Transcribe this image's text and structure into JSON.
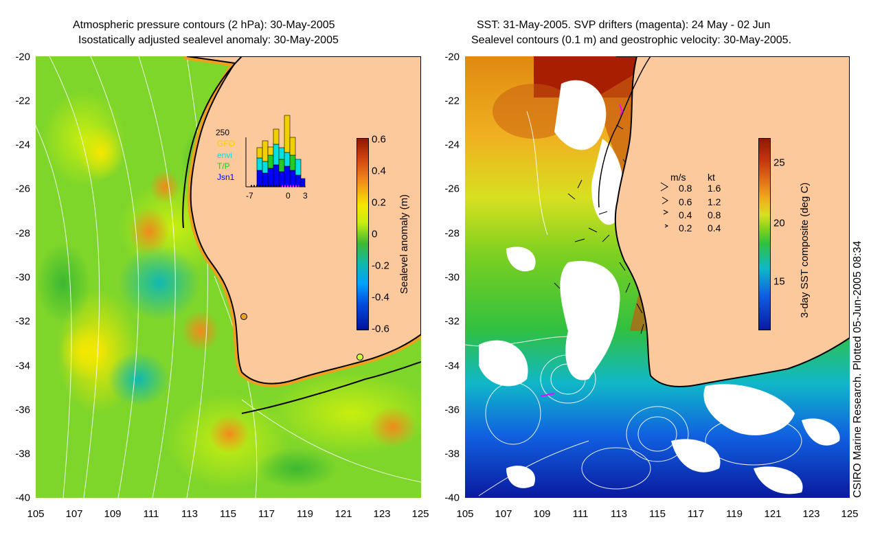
{
  "left_panel": {
    "title_line1": "Atmospheric pressure contours (2 hPa): 30-May-2005",
    "title_line2": "Isostatically adjusted sealevel anomaly: 30-May-2005",
    "colorbar": {
      "label": "Sealevel anomaly (m)",
      "ticks": [
        "0.6",
        "0.4",
        "0.2",
        "0",
        "-0.2",
        "-0.4",
        "-0.6"
      ]
    },
    "inset": {
      "ymax_label": "250",
      "x_labels": [
        "-7",
        "0",
        "3"
      ],
      "legend": [
        {
          "name": "GFO",
          "color": "#f2d000"
        },
        {
          "name": "envi",
          "color": "#00e0e0"
        },
        {
          "name": "T/P",
          "color": "#22cc22"
        },
        {
          "name": "Jsn1",
          "color": "#0000ff"
        }
      ]
    }
  },
  "right_panel": {
    "title_line1": "SST: 31-May-2005. SVP drifters (magenta): 24 May - 02 Jun",
    "title_line2": "Sealevel contours (0.1 m) and geostrophic velocity: 30-May-2005.",
    "colorbar": {
      "label": "3-day SST composite (deg C)",
      "ticks": [
        "25",
        "20",
        "15"
      ]
    },
    "velocity_legend": {
      "header_ms": "m/s",
      "header_kt": "kt",
      "rows": [
        {
          "ms": "0.8",
          "kt": "1.6"
        },
        {
          "ms": "0.6",
          "kt": "1.2"
        },
        {
          "ms": "0.4",
          "kt": "0.8"
        },
        {
          "ms": "0.2",
          "kt": "0.4"
        }
      ]
    }
  },
  "axes": {
    "y_ticks": [
      "-20",
      "-22",
      "-24",
      "-26",
      "-28",
      "-30",
      "-32",
      "-34",
      "-36",
      "-38",
      "-40"
    ],
    "x_ticks": [
      "105",
      "107",
      "109",
      "111",
      "113",
      "115",
      "117",
      "119",
      "121",
      "123",
      "125"
    ]
  },
  "credit": "CSIRO Marine Research. Plotted 05-Jun-2005 08:34",
  "colors": {
    "land": "#fcc99c",
    "ocean_green": "#7fd62a",
    "sst_warm": "#a81e00",
    "sst_cold": "#0a2aa8"
  }
}
